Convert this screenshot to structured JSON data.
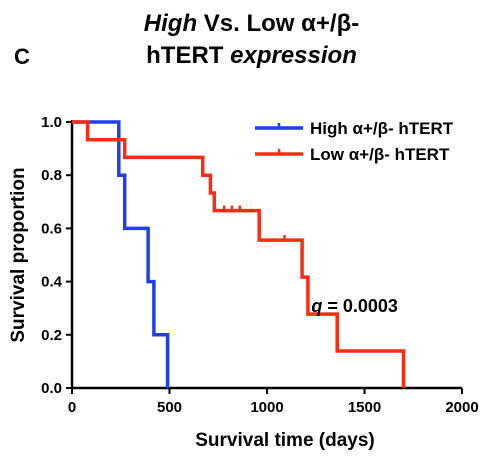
{
  "panel_label": "C",
  "title": {
    "line1_italic": "High",
    "line1_rest": " Vs. Low α+/β-",
    "line2_start": "hTERT ",
    "line2_italic": "expression"
  },
  "chart_data": {
    "type": "line",
    "step": true,
    "xlabel": "Survival time (days)",
    "ylabel": "Survival proportion",
    "xlim": [
      0,
      2000
    ],
    "ylim": [
      0,
      1.0
    ],
    "xticks": [
      0,
      500,
      1000,
      1500,
      2000
    ],
    "yticks": [
      0.0,
      0.2,
      0.4,
      0.6,
      0.8,
      1.0
    ],
    "xtick_labels": [
      "0",
      "500",
      "1000",
      "1500",
      "2000"
    ],
    "ytick_labels": [
      "0.0",
      "0.2",
      "0.4",
      "0.6",
      "0.8",
      "1.0"
    ],
    "legend_position": "top-right",
    "annotation": {
      "var": "q",
      "text": " = 0.0003",
      "x": 1730,
      "y": 0.27
    },
    "series": [
      {
        "name": "High α+/β- hTERT",
        "color": "#1f3fe8",
        "points": [
          [
            0,
            1.0
          ],
          [
            240,
            1.0
          ],
          [
            240,
            0.8
          ],
          [
            270,
            0.8
          ],
          [
            270,
            0.6
          ],
          [
            390,
            0.6
          ],
          [
            390,
            0.4
          ],
          [
            420,
            0.4
          ],
          [
            420,
            0.2
          ],
          [
            490,
            0.2
          ],
          [
            490,
            0.0
          ]
        ],
        "censored": []
      },
      {
        "name": "Low α+/β- hTERT",
        "color": "#ff2a12",
        "points": [
          [
            0,
            1.0
          ],
          [
            80,
            1.0
          ],
          [
            80,
            0.933
          ],
          [
            270,
            0.933
          ],
          [
            270,
            0.867
          ],
          [
            670,
            0.867
          ],
          [
            670,
            0.8
          ],
          [
            710,
            0.8
          ],
          [
            710,
            0.733
          ],
          [
            730,
            0.733
          ],
          [
            730,
            0.667
          ],
          [
            960,
            0.667
          ],
          [
            960,
            0.556
          ],
          [
            1180,
            0.556
          ],
          [
            1180,
            0.417
          ],
          [
            1210,
            0.417
          ],
          [
            1210,
            0.278
          ],
          [
            1360,
            0.278
          ],
          [
            1360,
            0.139
          ],
          [
            1700,
            0.139
          ],
          [
            1700,
            0.0
          ]
        ],
        "censored": [
          [
            780,
            0.667
          ],
          [
            820,
            0.667
          ],
          [
            860,
            0.667
          ],
          [
            1090,
            0.556
          ]
        ]
      }
    ]
  }
}
